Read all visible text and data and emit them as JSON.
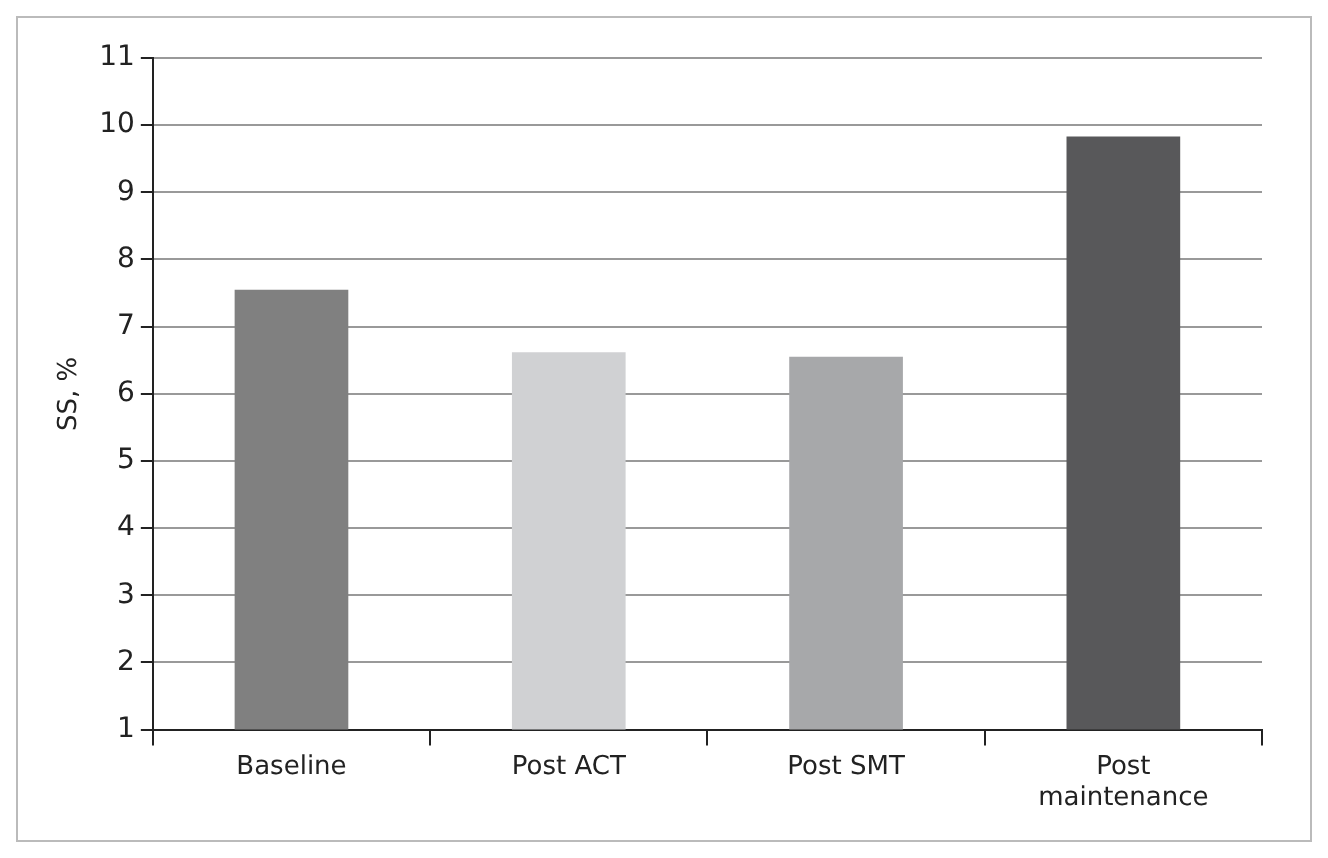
{
  "chart_data": {
    "type": "bar",
    "ylabel": "SS, %",
    "categories": [
      "Baseline",
      "Post ACT",
      "Post SMT",
      "Post maintenance"
    ],
    "values": [
      7.55,
      6.62,
      6.55,
      9.83
    ],
    "colors": [
      "#808080",
      "#d0d1d3",
      "#a7a8aa",
      "#58585a"
    ],
    "ylim": [
      1,
      11
    ],
    "yticks": [
      1,
      2,
      3,
      4,
      5,
      6,
      7,
      8,
      9,
      10,
      11
    ],
    "grid": "y",
    "legend": false
  }
}
